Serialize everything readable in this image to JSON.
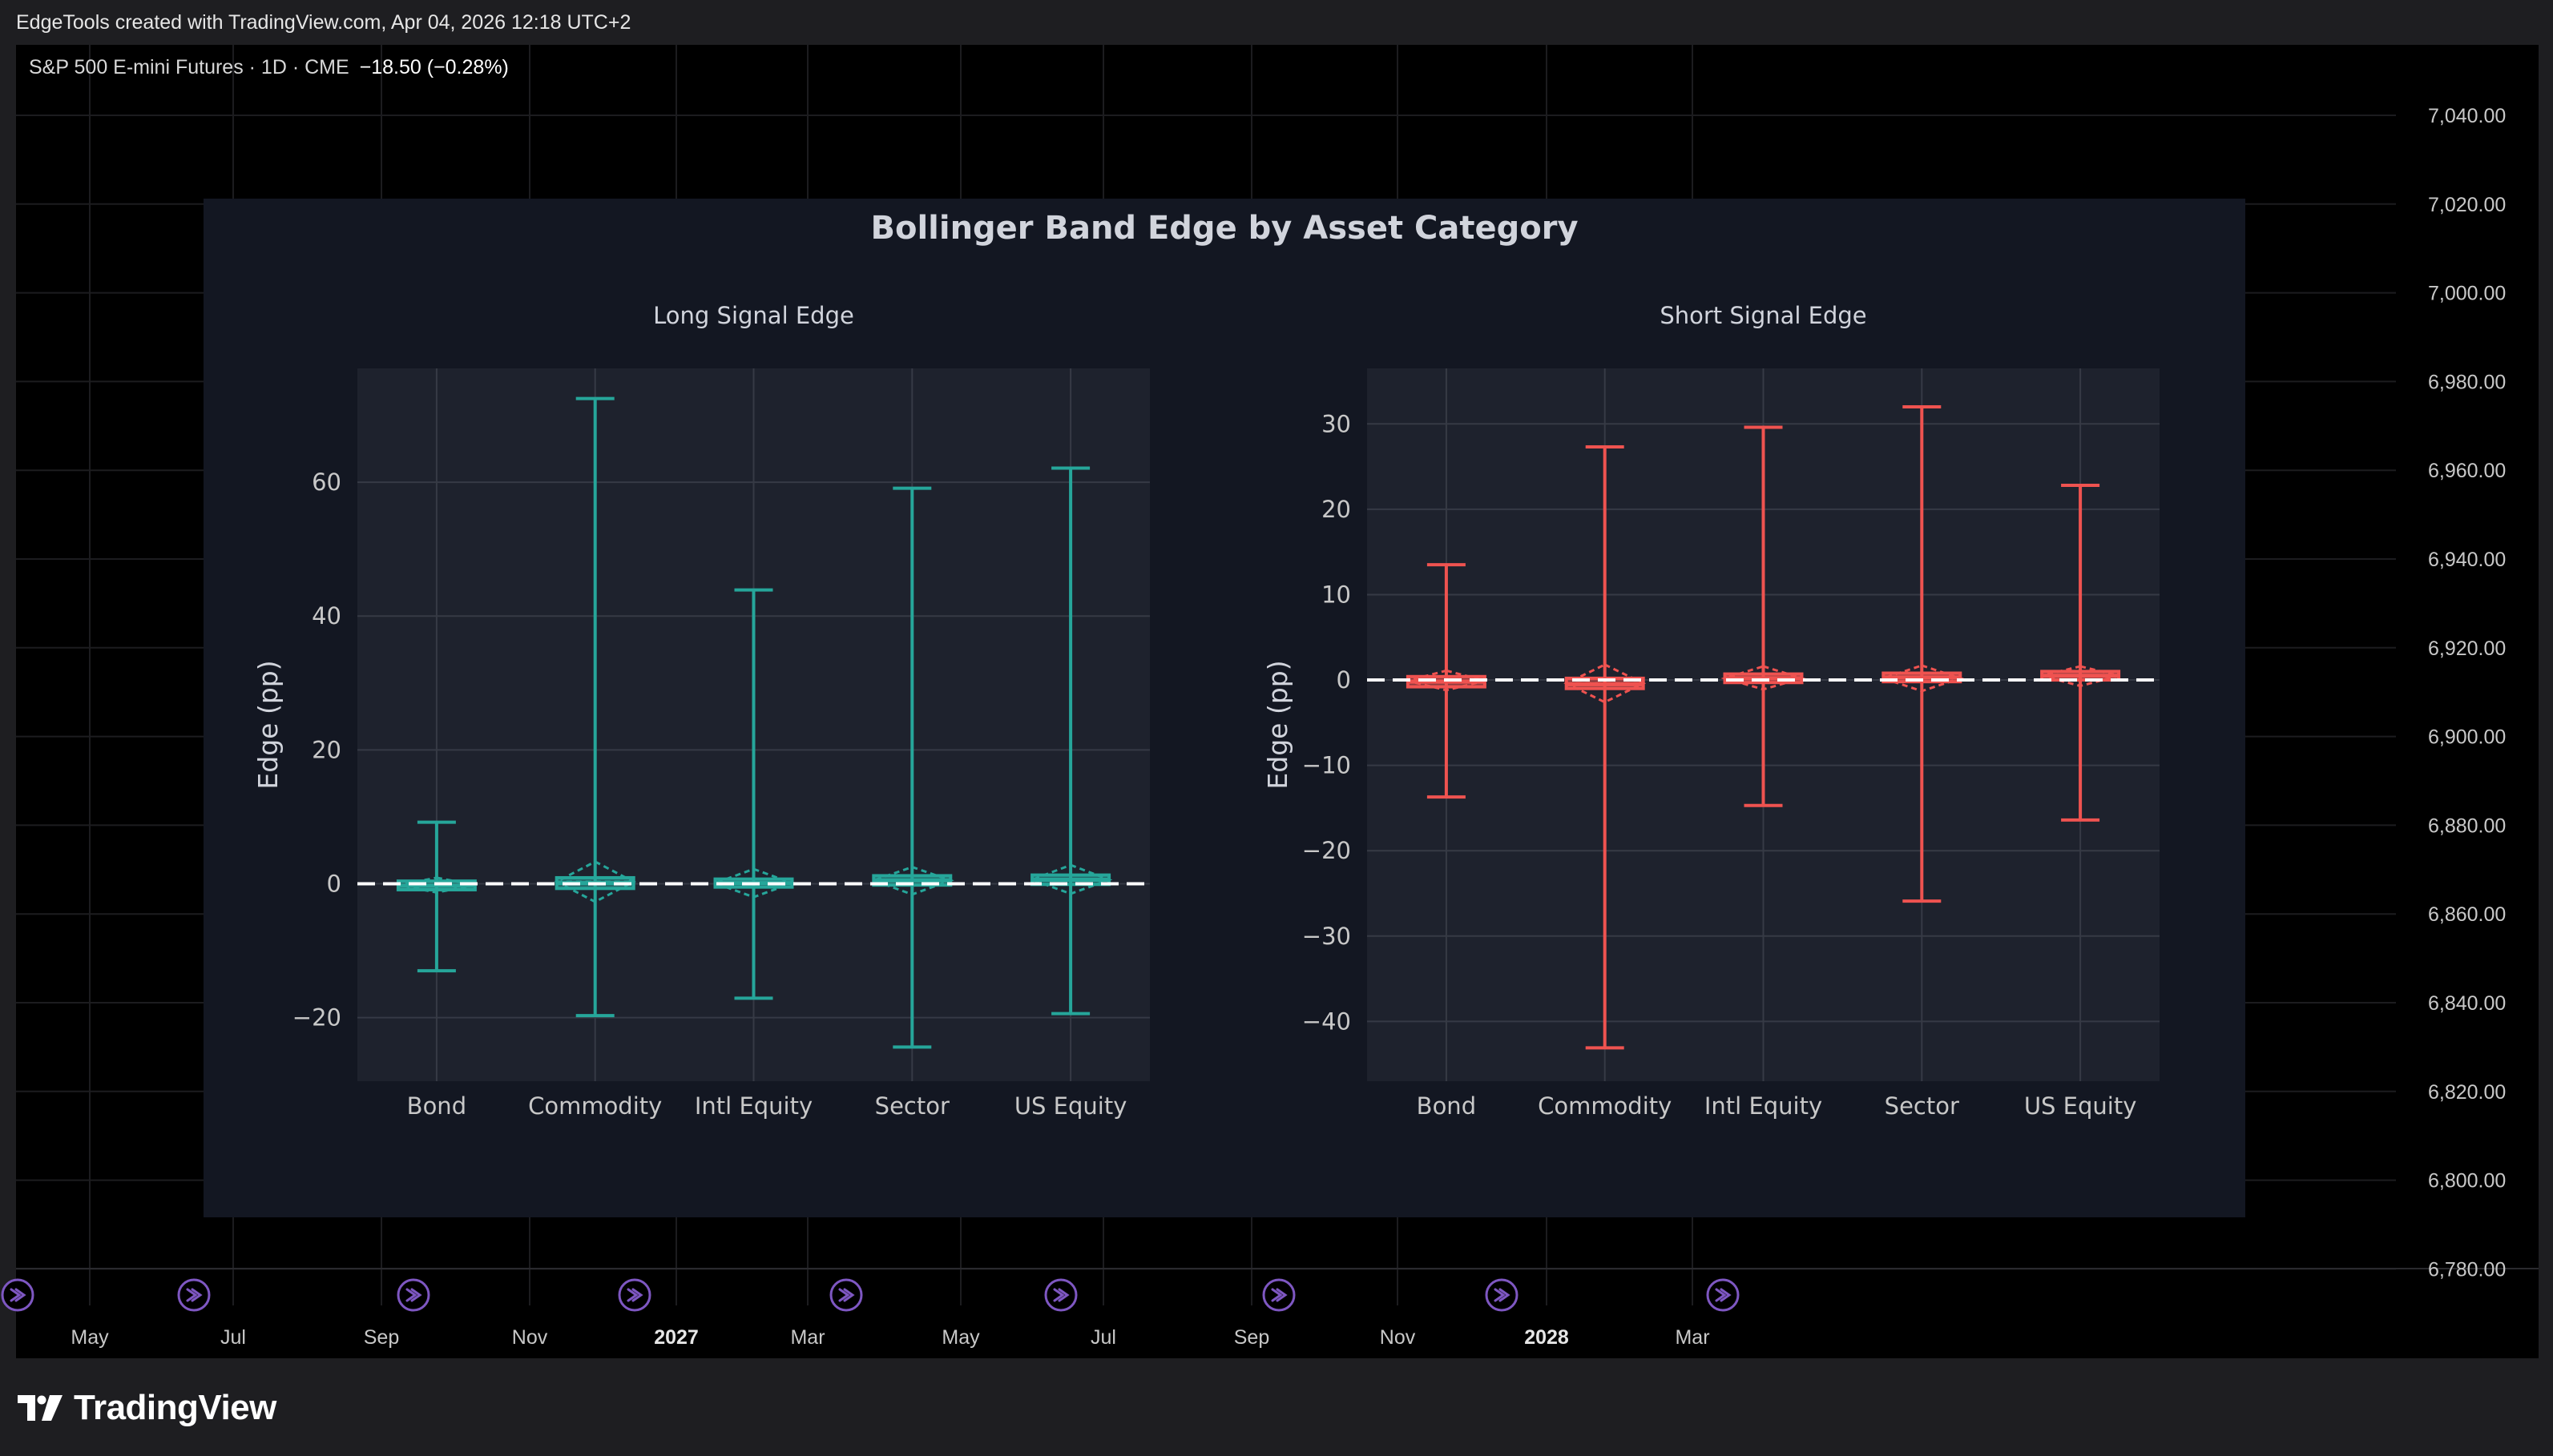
{
  "header": {
    "credit": "EdgeTools created with TradingView.com, Apr 04, 2026 12:18 UTC+2"
  },
  "symbol": {
    "name": "S&P 500 E-mini Futures · 1D · CME",
    "change": "−18.50 (−0.28%)"
  },
  "price_axis": {
    "labels": [
      "7,040.00",
      "7,020.00",
      "7,000.00",
      "6,980.00",
      "6,960.00",
      "6,940.00",
      "6,920.00",
      "6,900.00",
      "6,880.00",
      "6,860.00",
      "6,840.00",
      "6,820.00",
      "6,800.00",
      "6,780.00"
    ]
  },
  "time_axis": {
    "labels": [
      {
        "text": "May",
        "bold": false
      },
      {
        "text": "Jul",
        "bold": false
      },
      {
        "text": "Sep",
        "bold": false
      },
      {
        "text": "Nov",
        "bold": false
      },
      {
        "text": "2027",
        "bold": true
      },
      {
        "text": "Mar",
        "bold": false
      },
      {
        "text": "May",
        "bold": false
      },
      {
        "text": "Jul",
        "bold": false
      },
      {
        "text": "Sep",
        "bold": false
      },
      {
        "text": "Nov",
        "bold": false
      },
      {
        "text": "2028",
        "bold": true
      },
      {
        "text": "Mar",
        "bold": false
      }
    ]
  },
  "footer": {
    "brand": "TradingView"
  },
  "colors": {
    "long": "#26a69a",
    "short": "#ef5350",
    "panel_bg": "#131722",
    "plot_bg": "#1e222d",
    "event_icon": "#7e57c2"
  },
  "chart_data": {
    "type": "box",
    "title": "Bollinger Band Edge by Asset Category",
    "categories": [
      "Bond",
      "Commodity",
      "Intl Equity",
      "Sector",
      "US Equity"
    ],
    "subplots": [
      {
        "title": "Long Signal Edge",
        "ylabel": "Edge (pp)",
        "ylim": [
          -29.5,
          77
        ],
        "yticks": [
          -20,
          0,
          20,
          40,
          60
        ],
        "color": "#26a69a",
        "boxes": [
          {
            "min": -13,
            "q1": -0.9,
            "median": -0.3,
            "q3": 0.4,
            "max": 9.2,
            "mean": -0.2,
            "sd_low": -1.3,
            "sd_high": 0.9
          },
          {
            "min": -19.7,
            "q1": -0.7,
            "median": 0.1,
            "q3": 0.9,
            "max": 72.5,
            "mean": 0.3,
            "sd_low": -2.7,
            "sd_high": 3.3
          },
          {
            "min": -17.1,
            "q1": -0.5,
            "median": 0.1,
            "q3": 0.7,
            "max": 43.9,
            "mean": 0.1,
            "sd_low": -2.0,
            "sd_high": 2.2
          },
          {
            "min": -24.4,
            "q1": -0.2,
            "median": 0.5,
            "q3": 1.2,
            "max": 59.1,
            "mean": 0.5,
            "sd_low": -1.6,
            "sd_high": 2.5
          },
          {
            "min": -19.4,
            "q1": -0.1,
            "median": 0.6,
            "q3": 1.3,
            "max": 62.1,
            "mean": 0.6,
            "sd_low": -1.5,
            "sd_high": 2.8
          }
        ]
      },
      {
        "title": "Short Signal Edge",
        "ylabel": "Edge (pp)",
        "ylim": [
          -47,
          36.5
        ],
        "yticks": [
          -40,
          -30,
          -20,
          -10,
          0,
          10,
          20,
          30
        ],
        "color": "#ef5350",
        "boxes": [
          {
            "min": -13.7,
            "q1": -0.8,
            "median": -0.2,
            "q3": 0.4,
            "max": 13.5,
            "mean": -0.1,
            "sd_low": -1.2,
            "sd_high": 1.1
          },
          {
            "min": -43.1,
            "q1": -1.0,
            "median": -0.5,
            "q3": 0.2,
            "max": 27.3,
            "mean": -0.4,
            "sd_low": -2.6,
            "sd_high": 1.8
          },
          {
            "min": -14.7,
            "q1": -0.3,
            "median": 0.2,
            "q3": 0.7,
            "max": 29.6,
            "mean": 0.2,
            "sd_low": -1.1,
            "sd_high": 1.6
          },
          {
            "min": -25.9,
            "q1": -0.2,
            "median": 0.3,
            "q3": 0.8,
            "max": 32.0,
            "mean": 0.2,
            "sd_low": -1.3,
            "sd_high": 1.7
          },
          {
            "min": -16.4,
            "q1": 0.0,
            "median": 0.5,
            "q3": 1.0,
            "max": 22.8,
            "mean": 0.5,
            "sd_low": -0.7,
            "sd_high": 1.6
          }
        ]
      }
    ]
  }
}
